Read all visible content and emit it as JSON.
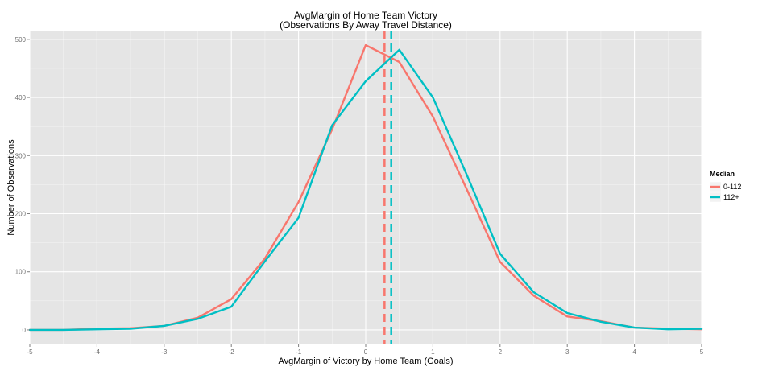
{
  "chart_data": {
    "type": "line",
    "title": "AvgMargin of Home Team Victory",
    "subtitle": "(Observations By Away Travel Distance)",
    "xlabel": "AvgMargin of Victory by Home Team (Goals)",
    "ylabel": "Number of Observations",
    "xlim": [
      -5,
      5
    ],
    "ylim": [
      -25,
      515
    ],
    "x_ticks": [
      -5,
      -4,
      -3,
      -2,
      -1,
      0,
      1,
      2,
      3,
      4,
      5
    ],
    "y_ticks": [
      0,
      100,
      200,
      300,
      400,
      500
    ],
    "grid": true,
    "legend": {
      "title": "Median",
      "position": "right"
    },
    "series": [
      {
        "name": "0-112",
        "color": "#F8766D",
        "median": 0.28,
        "x": [
          -5,
          -4.5,
          -4,
          -3.5,
          -3,
          -2.5,
          -2,
          -1.5,
          -1,
          -0.5,
          0,
          0.5,
          1,
          1.5,
          2,
          2.5,
          3,
          3.5,
          4,
          4.5,
          5
        ],
        "y": [
          0,
          0,
          2,
          3,
          7,
          21,
          53,
          123,
          220,
          345,
          490,
          461,
          367,
          243,
          117,
          59,
          23,
          15,
          4,
          2,
          1
        ]
      },
      {
        "name": "112+",
        "color": "#00BFC4",
        "median": 0.38,
        "x": [
          -5,
          -4.5,
          -4,
          -3.5,
          -3,
          -2.5,
          -2,
          -1.5,
          -1,
          -0.5,
          0,
          0.5,
          1,
          1.5,
          2,
          2.5,
          3,
          3.5,
          4,
          4.5,
          5
        ],
        "y": [
          0,
          0,
          1,
          2,
          7,
          19,
          40,
          118,
          193,
          352,
          428,
          482,
          400,
          268,
          131,
          65,
          29,
          14,
          4,
          1,
          2
        ]
      }
    ]
  }
}
